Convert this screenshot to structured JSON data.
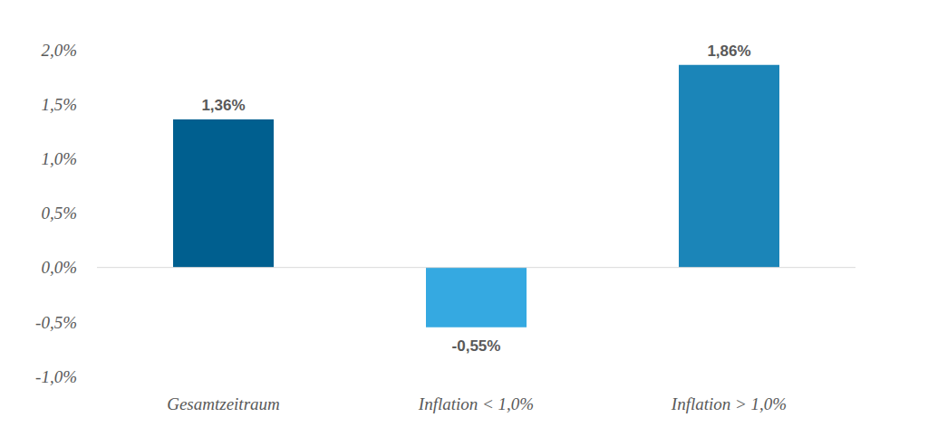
{
  "chart_data": {
    "type": "bar",
    "categories": [
      "Gesamtzeitraum",
      "Inflation < 1,0%",
      "Inflation > 1,0%"
    ],
    "values": [
      1.36,
      -0.55,
      1.86
    ],
    "value_labels": [
      "1,36%",
      "-0,55%",
      "1,86%"
    ],
    "colors": [
      "#005f8f",
      "#35a9e1",
      "#1b85b8"
    ],
    "ylim": [
      -1,
      2
    ],
    "yticks": [
      {
        "value": -1,
        "label": "-1,0%"
      },
      {
        "value": -0.5,
        "label": "-0,5%"
      },
      {
        "value": 0,
        "label": "0,0%"
      },
      {
        "value": 0.5,
        "label": "0,5%"
      },
      {
        "value": 1,
        "label": "1,0%"
      },
      {
        "value": 1.5,
        "label": "1,5%"
      },
      {
        "value": 2,
        "label": "2,0%"
      }
    ],
    "data_labels": true,
    "grid": false
  }
}
